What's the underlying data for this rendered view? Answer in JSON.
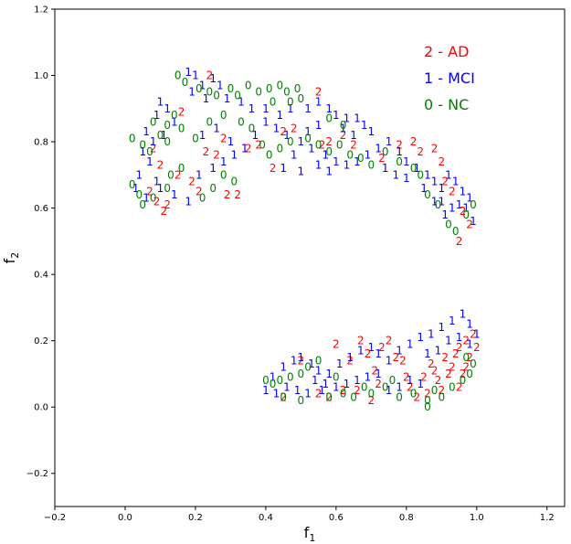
{
  "chart_data": {
    "type": "scatter",
    "marker": "text-digit",
    "xlabel_main": "f",
    "xlabel_sub": "1",
    "ylabel_main": "f",
    "ylabel_sub": "2",
    "xlim": [
      -0.2,
      1.25
    ],
    "ylim": [
      -0.3,
      1.2
    ],
    "xticks": [
      -0.2,
      0.0,
      0.2,
      0.4,
      0.6,
      0.8,
      1.0,
      1.2
    ],
    "xtick_labels": [
      "−0.2",
      "0.0",
      "0.2",
      "0.4",
      "0.6",
      "0.8",
      "1.0",
      "1.2"
    ],
    "yticks": [
      -0.2,
      0.0,
      0.2,
      0.4,
      0.6,
      0.8,
      1.0,
      1.2
    ],
    "ytick_labels": [
      "−0.2",
      "0.0",
      "0.2",
      "0.4",
      "0.6",
      "0.8",
      "1.0",
      "1.2"
    ],
    "grid": false,
    "legend_position": "top-right",
    "legend": [
      {
        "label": "2 - AD",
        "color": "#ff0000"
      },
      {
        "label": "1 - MCI",
        "color": "#0000ff"
      },
      {
        "label": "0 - NC",
        "color": "#008000"
      }
    ],
    "series": [
      {
        "label": "2",
        "color": "#ff0000",
        "points": [
          [
            0.16,
            0.89
          ],
          [
            0.24,
            1.0
          ],
          [
            0.28,
            0.81
          ],
          [
            0.35,
            0.78
          ],
          [
            0.38,
            0.79
          ],
          [
            0.42,
            0.72
          ],
          [
            0.45,
            0.83
          ],
          [
            0.48,
            0.84
          ],
          [
            0.55,
            0.95
          ],
          [
            0.56,
            0.79
          ],
          [
            0.58,
            0.8
          ],
          [
            0.62,
            0.82
          ],
          [
            0.65,
            0.79
          ],
          [
            0.73,
            0.75
          ],
          [
            0.78,
            0.79
          ],
          [
            0.82,
            0.8
          ],
          [
            0.84,
            0.77
          ],
          [
            0.88,
            0.78
          ],
          [
            0.9,
            0.74
          ],
          [
            0.91,
            0.68
          ],
          [
            0.93,
            0.65
          ],
          [
            0.96,
            0.59
          ],
          [
            0.98,
            0.55
          ],
          [
            0.95,
            0.5
          ],
          [
            0.08,
            0.78
          ],
          [
            0.1,
            0.73
          ],
          [
            0.15,
            0.7
          ],
          [
            0.19,
            0.68
          ],
          [
            0.21,
            0.65
          ],
          [
            0.23,
            0.77
          ],
          [
            0.26,
            0.76
          ],
          [
            0.29,
            0.64
          ],
          [
            0.32,
            0.64
          ],
          [
            0.07,
            0.65
          ],
          [
            0.09,
            0.62
          ],
          [
            0.11,
            0.59
          ],
          [
            0.12,
            0.61
          ],
          [
            0.6,
            0.19
          ],
          [
            0.67,
            0.2
          ],
          [
            0.69,
            0.16
          ],
          [
            0.71,
            0.11
          ],
          [
            0.72,
            0.07
          ],
          [
            0.73,
            0.18
          ],
          [
            0.75,
            0.2
          ],
          [
            0.77,
            0.15
          ],
          [
            0.79,
            0.14
          ],
          [
            0.8,
            0.09
          ],
          [
            0.81,
            0.06
          ],
          [
            0.83,
            0.03
          ],
          [
            0.85,
            0.09
          ],
          [
            0.86,
            0.04
          ],
          [
            0.87,
            0.13
          ],
          [
            0.88,
            0.11
          ],
          [
            0.89,
            0.08
          ],
          [
            0.9,
            0.05
          ],
          [
            0.91,
            0.15
          ],
          [
            0.92,
            0.1
          ],
          [
            0.93,
            0.12
          ],
          [
            0.94,
            0.16
          ],
          [
            0.95,
            0.18
          ],
          [
            0.96,
            0.1
          ],
          [
            0.97,
            0.2
          ],
          [
            0.98,
            0.15
          ],
          [
            0.99,
            0.22
          ],
          [
            1.0,
            0.18
          ],
          [
            0.97,
            0.12
          ],
          [
            0.95,
            0.06
          ],
          [
            0.45,
            0.03
          ],
          [
            0.55,
            0.04
          ],
          [
            0.62,
            0.05
          ],
          [
            0.5,
            0.14
          ],
          [
            0.58,
            0.03
          ],
          [
            0.64,
            0.14
          ],
          [
            0.66,
            0.05
          ],
          [
            0.7,
            0.02
          ]
        ]
      },
      {
        "label": "1",
        "color": "#0000ff",
        "points": [
          [
            0.18,
            1.01
          ],
          [
            0.2,
            1.0
          ],
          [
            0.22,
            0.97
          ],
          [
            0.25,
            0.99
          ],
          [
            0.27,
            0.97
          ],
          [
            0.19,
            0.95
          ],
          [
            0.23,
            0.93
          ],
          [
            0.29,
            0.93
          ],
          [
            0.33,
            0.92
          ],
          [
            0.36,
            0.9
          ],
          [
            0.4,
            0.9
          ],
          [
            0.44,
            0.88
          ],
          [
            0.47,
            0.9
          ],
          [
            0.52,
            0.9
          ],
          [
            0.55,
            0.92
          ],
          [
            0.58,
            0.9
          ],
          [
            0.6,
            0.88
          ],
          [
            0.63,
            0.87
          ],
          [
            0.66,
            0.87
          ],
          [
            0.68,
            0.85
          ],
          [
            0.7,
            0.83
          ],
          [
            0.4,
            0.86
          ],
          [
            0.43,
            0.84
          ],
          [
            0.46,
            0.82
          ],
          [
            0.5,
            0.8
          ],
          [
            0.53,
            0.78
          ],
          [
            0.57,
            0.76
          ],
          [
            0.6,
            0.74
          ],
          [
            0.63,
            0.73
          ],
          [
            0.66,
            0.74
          ],
          [
            0.69,
            0.76
          ],
          [
            0.72,
            0.78
          ],
          [
            0.75,
            0.8
          ],
          [
            0.78,
            0.77
          ],
          [
            0.8,
            0.74
          ],
          [
            0.83,
            0.72
          ],
          [
            0.86,
            0.7
          ],
          [
            0.88,
            0.68
          ],
          [
            0.9,
            0.66
          ],
          [
            0.92,
            0.7
          ],
          [
            0.94,
            0.68
          ],
          [
            0.96,
            0.65
          ],
          [
            0.97,
            0.6
          ],
          [
            0.99,
            0.56
          ],
          [
            0.98,
            0.63
          ],
          [
            0.95,
            0.61
          ],
          [
            0.93,
            0.6
          ],
          [
            0.9,
            0.62
          ],
          [
            0.1,
            0.92
          ],
          [
            0.12,
            0.9
          ],
          [
            0.09,
            0.88
          ],
          [
            0.14,
            0.86
          ],
          [
            0.06,
            0.83
          ],
          [
            0.08,
            0.8
          ],
          [
            0.11,
            0.82
          ],
          [
            0.05,
            0.77
          ],
          [
            0.07,
            0.74
          ],
          [
            0.04,
            0.7
          ],
          [
            0.09,
            0.68
          ],
          [
            0.03,
            0.66
          ],
          [
            0.06,
            0.63
          ],
          [
            0.1,
            0.66
          ],
          [
            0.14,
            0.64
          ],
          [
            0.18,
            0.62
          ],
          [
            0.21,
            0.7
          ],
          [
            0.25,
            0.72
          ],
          [
            0.28,
            0.74
          ],
          [
            0.31,
            0.76
          ],
          [
            0.34,
            0.78
          ],
          [
            0.22,
            0.82
          ],
          [
            0.26,
            0.84
          ],
          [
            0.3,
            0.8
          ],
          [
            0.37,
            0.82
          ],
          [
            0.52,
            0.83
          ],
          [
            0.55,
            0.85
          ],
          [
            0.62,
            0.84
          ],
          [
            0.65,
            0.82
          ],
          [
            0.48,
            0.76
          ],
          [
            0.45,
            0.72
          ],
          [
            0.5,
            0.71
          ],
          [
            0.55,
            0.73
          ],
          [
            0.58,
            0.71
          ],
          [
            0.74,
            0.72
          ],
          [
            0.77,
            0.7
          ],
          [
            0.8,
            0.69
          ],
          [
            0.85,
            0.66
          ],
          [
            0.88,
            0.62
          ],
          [
            0.91,
            0.58
          ],
          [
            0.42,
            0.09
          ],
          [
            0.45,
            0.12
          ],
          [
            0.48,
            0.14
          ],
          [
            0.5,
            0.15
          ],
          [
            0.53,
            0.13
          ],
          [
            0.55,
            0.11
          ],
          [
            0.58,
            0.1
          ],
          [
            0.61,
            0.13
          ],
          [
            0.64,
            0.15
          ],
          [
            0.67,
            0.17
          ],
          [
            0.7,
            0.18
          ],
          [
            0.72,
            0.16
          ],
          [
            0.75,
            0.14
          ],
          [
            0.78,
            0.17
          ],
          [
            0.81,
            0.19
          ],
          [
            0.84,
            0.21
          ],
          [
            0.87,
            0.22
          ],
          [
            0.9,
            0.24
          ],
          [
            0.93,
            0.26
          ],
          [
            0.96,
            0.28
          ],
          [
            0.98,
            0.25
          ],
          [
            1.0,
            0.22
          ],
          [
            0.98,
            0.19
          ],
          [
            0.95,
            0.21
          ],
          [
            0.92,
            0.2
          ],
          [
            0.89,
            0.17
          ],
          [
            0.86,
            0.16
          ],
          [
            0.4,
            0.05
          ],
          [
            0.43,
            0.04
          ],
          [
            0.46,
            0.06
          ],
          [
            0.49,
            0.05
          ],
          [
            0.52,
            0.04
          ],
          [
            0.56,
            0.05
          ],
          [
            0.6,
            0.06
          ],
          [
            0.63,
            0.07
          ],
          [
            0.66,
            0.08
          ],
          [
            0.69,
            0.09
          ],
          [
            0.72,
            0.1
          ],
          [
            0.75,
            0.05
          ],
          [
            0.78,
            0.06
          ],
          [
            0.81,
            0.08
          ],
          [
            0.84,
            0.07
          ],
          [
            0.54,
            0.08
          ],
          [
            0.57,
            0.07
          ]
        ]
      },
      {
        "label": "0",
        "color": "#008000",
        "points": [
          [
            0.15,
            1.0
          ],
          [
            0.17,
            0.98
          ],
          [
            0.21,
            0.96
          ],
          [
            0.24,
            0.95
          ],
          [
            0.26,
            0.94
          ],
          [
            0.3,
            0.96
          ],
          [
            0.32,
            0.94
          ],
          [
            0.35,
            0.97
          ],
          [
            0.38,
            0.95
          ],
          [
            0.41,
            0.96
          ],
          [
            0.44,
            0.97
          ],
          [
            0.46,
            0.95
          ],
          [
            0.49,
            0.96
          ],
          [
            0.47,
            0.92
          ],
          [
            0.5,
            0.93
          ],
          [
            0.42,
            0.92
          ],
          [
            0.12,
            0.85
          ],
          [
            0.14,
            0.88
          ],
          [
            0.16,
            0.84
          ],
          [
            0.1,
            0.82
          ],
          [
            0.08,
            0.86
          ],
          [
            0.12,
            0.8
          ],
          [
            0.02,
            0.81
          ],
          [
            0.05,
            0.79
          ],
          [
            0.07,
            0.77
          ],
          [
            0.02,
            0.67
          ],
          [
            0.04,
            0.64
          ],
          [
            0.05,
            0.61
          ],
          [
            0.08,
            0.63
          ],
          [
            0.12,
            0.66
          ],
          [
            0.13,
            0.7
          ],
          [
            0.16,
            0.72
          ],
          [
            0.2,
            0.81
          ],
          [
            0.24,
            0.86
          ],
          [
            0.28,
            0.88
          ],
          [
            0.33,
            0.86
          ],
          [
            0.36,
            0.84
          ],
          [
            0.39,
            0.79
          ],
          [
            0.41,
            0.76
          ],
          [
            0.44,
            0.78
          ],
          [
            0.47,
            0.8
          ],
          [
            0.52,
            0.81
          ],
          [
            0.55,
            0.79
          ],
          [
            0.58,
            0.77
          ],
          [
            0.61,
            0.79
          ],
          [
            0.64,
            0.76
          ],
          [
            0.67,
            0.75
          ],
          [
            0.7,
            0.73
          ],
          [
            0.74,
            0.77
          ],
          [
            0.78,
            0.74
          ],
          [
            0.82,
            0.72
          ],
          [
            0.84,
            0.7
          ],
          [
            0.86,
            0.64
          ],
          [
            0.89,
            0.61
          ],
          [
            0.92,
            0.55
          ],
          [
            0.94,
            0.53
          ],
          [
            0.97,
            0.58
          ],
          [
            0.99,
            0.61
          ],
          [
            0.22,
            0.63
          ],
          [
            0.25,
            0.66
          ],
          [
            0.28,
            0.7
          ],
          [
            0.31,
            0.68
          ],
          [
            0.62,
            0.85
          ],
          [
            0.58,
            0.87
          ],
          [
            0.4,
            0.08
          ],
          [
            0.42,
            0.07
          ],
          [
            0.44,
            0.08
          ],
          [
            0.47,
            0.09
          ],
          [
            0.5,
            0.1
          ],
          [
            0.52,
            0.12
          ],
          [
            0.55,
            0.14
          ],
          [
            0.45,
            0.03
          ],
          [
            0.5,
            0.02
          ],
          [
            0.58,
            0.03
          ],
          [
            0.62,
            0.04
          ],
          [
            0.65,
            0.03
          ],
          [
            0.7,
            0.04
          ],
          [
            0.74,
            0.06
          ],
          [
            0.78,
            0.03
          ],
          [
            0.82,
            0.04
          ],
          [
            0.86,
            0.02
          ],
          [
            0.88,
            0.05
          ],
          [
            0.9,
            0.03
          ],
          [
            0.93,
            0.06
          ],
          [
            0.96,
            0.08
          ],
          [
            0.98,
            0.1
          ],
          [
            0.99,
            0.13
          ],
          [
            0.97,
            0.15
          ],
          [
            0.86,
            0.0
          ],
          [
            0.6,
            0.09
          ],
          [
            0.68,
            0.06
          ],
          [
            0.76,
            0.08
          ]
        ]
      }
    ]
  }
}
